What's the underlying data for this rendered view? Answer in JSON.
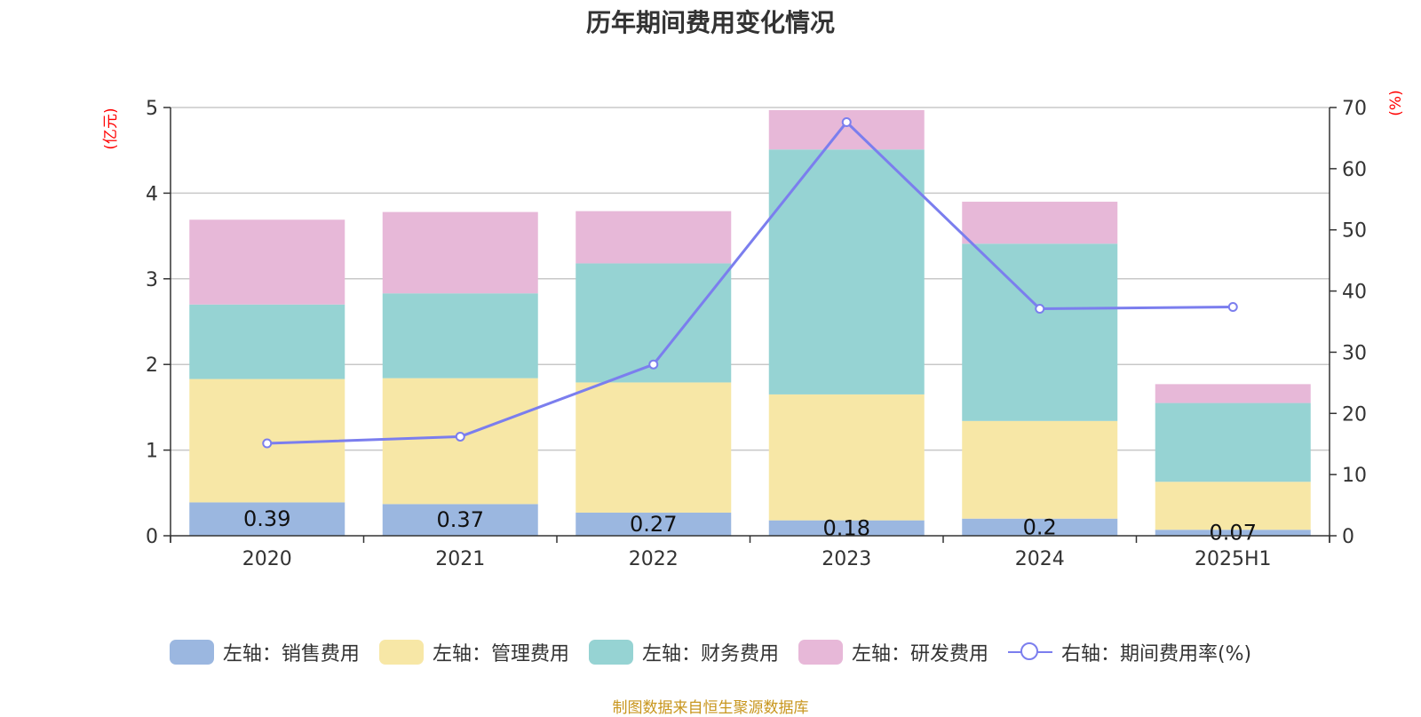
{
  "title": "历年期间费用变化情况",
  "source": "制图数据来自恒生聚源数据库",
  "left_axis_unit": "(亿元)",
  "right_axis_unit": "(%)",
  "legend": [
    {
      "label": "左轴：销售费用",
      "color": "#9bb7e0",
      "kind": "bar"
    },
    {
      "label": "左轴：管理费用",
      "color": "#f7e7a6",
      "kind": "bar"
    },
    {
      "label": "左轴：财务费用",
      "color": "#96d3d3",
      "kind": "bar"
    },
    {
      "label": "左轴：研发费用",
      "color": "#e7b8d8",
      "kind": "bar"
    },
    {
      "label": "右轴：期间费用率(%)",
      "color": "#7b7eee",
      "kind": "line"
    }
  ],
  "chart_data": {
    "type": "bar",
    "stacked": true,
    "categories": [
      "2020",
      "2021",
      "2022",
      "2023",
      "2024",
      "2025H1"
    ],
    "y_left_ticks": [
      "0",
      "1",
      "2",
      "3",
      "4",
      "5"
    ],
    "y_right_ticks": [
      "0",
      "10",
      "20",
      "30",
      "40",
      "50",
      "60",
      "70"
    ],
    "ylim_left": [
      0,
      5
    ],
    "ylim_right": [
      0,
      70
    ],
    "grid": true,
    "legend_position": "bottom",
    "series": [
      {
        "name": "左轴：销售费用",
        "axis": "left",
        "color": "#9bb7e0",
        "values": [
          0.39,
          0.37,
          0.27,
          0.18,
          0.2,
          0.07
        ],
        "labels": [
          "0.39",
          "0.37",
          "0.27",
          "0.18",
          "0.2",
          "0.07"
        ]
      },
      {
        "name": "左轴：管理费用",
        "axis": "left",
        "color": "#f7e7a6",
        "values": [
          1.44,
          1.47,
          1.52,
          1.47,
          1.14,
          0.56
        ]
      },
      {
        "name": "左轴：财务费用",
        "axis": "left",
        "color": "#96d3d3",
        "values": [
          0.87,
          0.99,
          1.39,
          2.86,
          2.07,
          0.92
        ]
      },
      {
        "name": "左轴：研发费用",
        "axis": "left",
        "color": "#e7b8d8",
        "values": [
          0.99,
          0.95,
          0.61,
          0.46,
          0.49,
          0.22
        ]
      },
      {
        "name": "右轴：期间费用率(%)",
        "axis": "right",
        "type": "line",
        "color": "#7b7eee",
        "values": [
          15.1,
          16.2,
          28.0,
          67.6,
          37.1,
          37.4
        ]
      }
    ]
  }
}
